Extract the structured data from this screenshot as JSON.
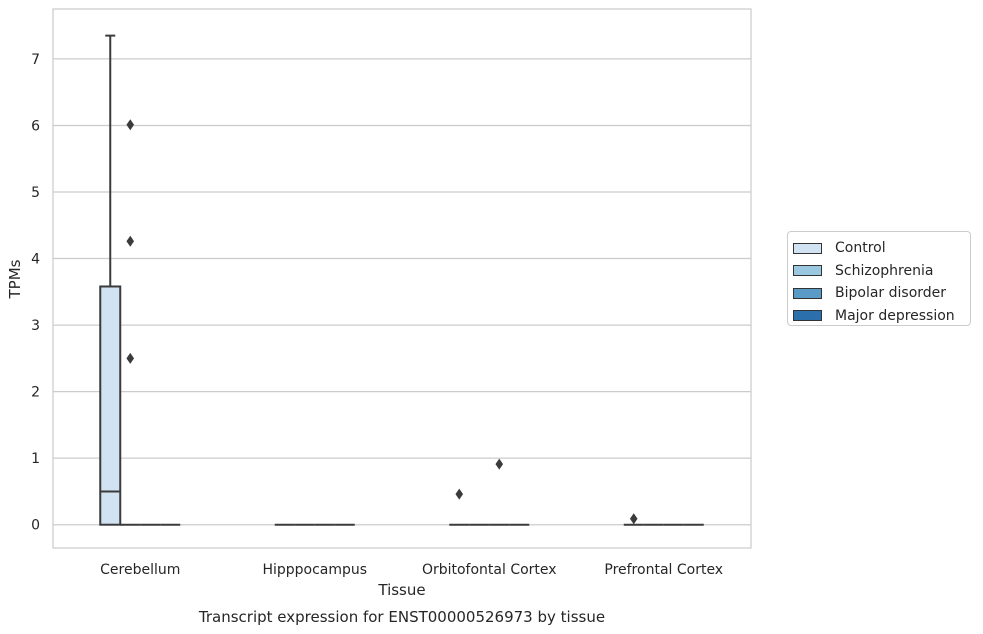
{
  "chart_data": {
    "type": "box",
    "title": "Transcript expression for ENST00000526973 by tissue",
    "xlabel": "Tissue",
    "ylabel": "TPMs",
    "categories": [
      "Cerebellum",
      "Hipppocampus",
      "Orbitofontal Cortex",
      "Prefrontal Cortex"
    ],
    "ylim": [
      -0.35,
      7.75
    ],
    "yticks": [
      0,
      1,
      2,
      3,
      4,
      5,
      6,
      7
    ],
    "grid": true,
    "legend_position": "right",
    "series": [
      {
        "name": "Control",
        "color": "#d1e2f2",
        "boxes": [
          {
            "q1": 0,
            "median": 0.5,
            "q3": 3.58,
            "whisker_low": 0,
            "whisker_high": 7.35,
            "outliers": []
          },
          {
            "q1": 0,
            "median": 0,
            "q3": 0,
            "whisker_low": 0,
            "whisker_high": 0,
            "outliers": []
          },
          {
            "q1": 0,
            "median": 0,
            "q3": 0,
            "whisker_low": 0,
            "whisker_high": 0,
            "outliers": [
              0.46
            ]
          },
          {
            "q1": 0,
            "median": 0,
            "q3": 0,
            "whisker_low": 0,
            "whisker_high": 0,
            "outliers": [
              0.09
            ]
          }
        ]
      },
      {
        "name": "Schizophrenia",
        "color": "#9ac8e0",
        "boxes": [
          {
            "q1": 0,
            "median": 0,
            "q3": 0,
            "whisker_low": 0,
            "whisker_high": 0,
            "outliers": [
              2.5,
              4.26,
              6.01
            ]
          },
          {
            "q1": 0,
            "median": 0,
            "q3": 0,
            "whisker_low": 0,
            "whisker_high": 0,
            "outliers": []
          },
          {
            "q1": 0,
            "median": 0,
            "q3": 0,
            "whisker_low": 0,
            "whisker_high": 0,
            "outliers": []
          },
          {
            "q1": 0,
            "median": 0,
            "q3": 0,
            "whisker_low": 0,
            "whisker_high": 0,
            "outliers": []
          }
        ]
      },
      {
        "name": "Bipolar disorder",
        "color": "#5a9ac7",
        "boxes": [
          {
            "q1": 0,
            "median": 0,
            "q3": 0,
            "whisker_low": 0,
            "whisker_high": 0,
            "outliers": []
          },
          {
            "q1": 0,
            "median": 0,
            "q3": 0,
            "whisker_low": 0,
            "whisker_high": 0,
            "outliers": []
          },
          {
            "q1": 0,
            "median": 0,
            "q3": 0,
            "whisker_low": 0,
            "whisker_high": 0,
            "outliers": [
              0.91
            ]
          },
          {
            "q1": 0,
            "median": 0,
            "q3": 0,
            "whisker_low": 0,
            "whisker_high": 0,
            "outliers": []
          }
        ]
      },
      {
        "name": "Major depression",
        "color": "#2b6fad",
        "boxes": [
          {
            "q1": 0,
            "median": 0,
            "q3": 0,
            "whisker_low": 0,
            "whisker_high": 0,
            "outliers": []
          },
          {
            "q1": 0,
            "median": 0,
            "q3": 0,
            "whisker_low": 0,
            "whisker_high": 0,
            "outliers": []
          },
          {
            "q1": 0,
            "median": 0,
            "q3": 0,
            "whisker_low": 0,
            "whisker_high": 0,
            "outliers": []
          },
          {
            "q1": 0,
            "median": 0,
            "q3": 0,
            "whisker_low": 0,
            "whisker_high": 0,
            "outliers": []
          }
        ]
      }
    ]
  }
}
